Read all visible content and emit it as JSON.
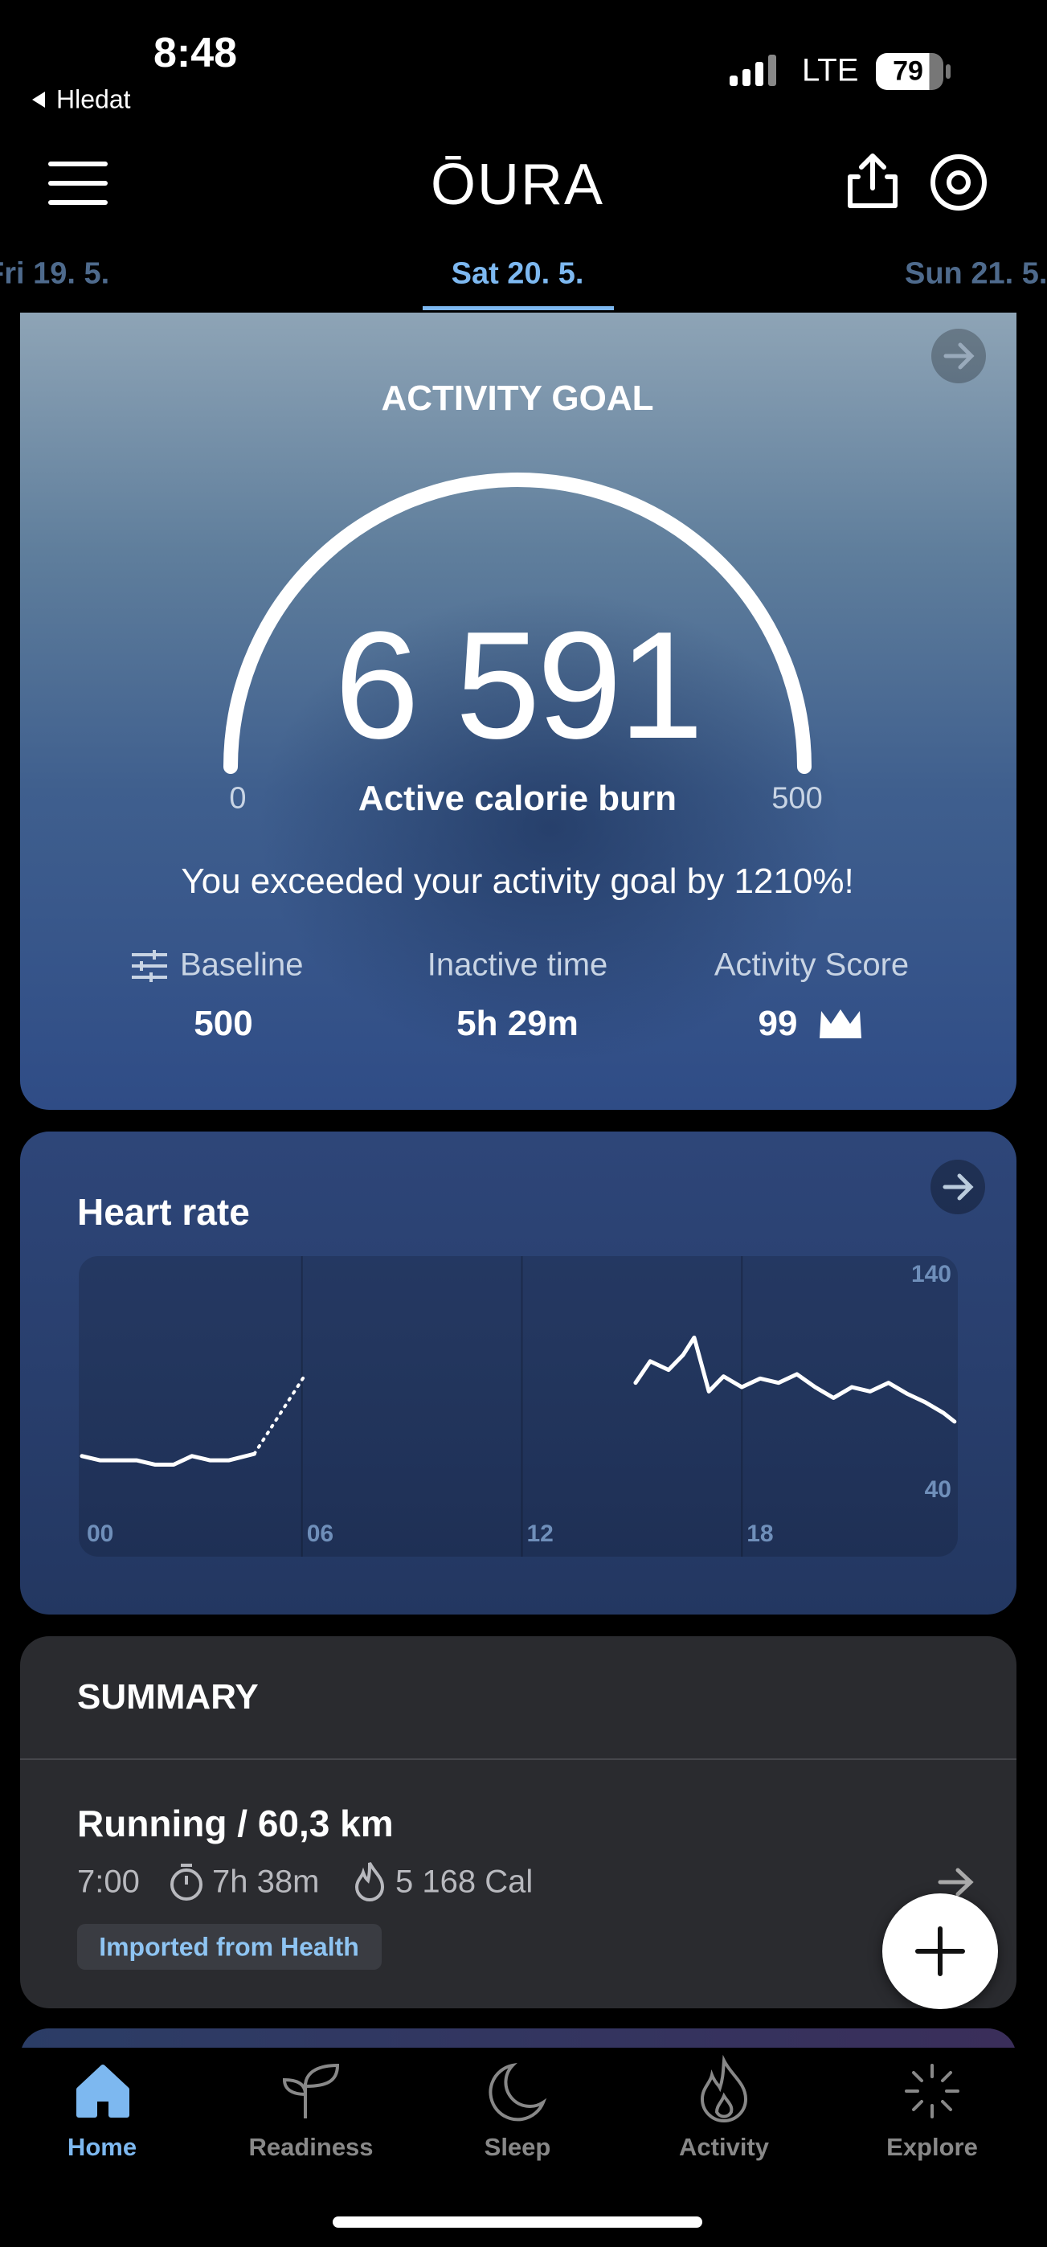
{
  "status_bar": {
    "time": "8:48",
    "back": "Hledat",
    "network": "LTE",
    "battery": 79
  },
  "header": {
    "logo": "ŌURA"
  },
  "date_tabs": [
    "Fri 19. 5.",
    "Sat 20. 5.",
    "Sun 21. 5."
  ],
  "activity_card": {
    "title": "ACTIVITY GOAL",
    "value": "6 591",
    "gauge_min": "0",
    "gauge_max": "500",
    "label": "Active calorie burn",
    "message": "You exceeded your activity goal by 1210%!",
    "stats": [
      {
        "label": "Baseline",
        "value": "500"
      },
      {
        "label": "Inactive time",
        "value": "5h 29m"
      },
      {
        "label": "Activity Score",
        "value": "99"
      }
    ]
  },
  "heart_rate": {
    "title": "Heart rate",
    "chart_data": {
      "type": "line",
      "xlim": [
        0,
        24
      ],
      "ylim": [
        40,
        140
      ],
      "xticks": [
        {
          "value": 0,
          "label": "00"
        },
        {
          "value": 6,
          "label": "06"
        },
        {
          "value": 12,
          "label": "12"
        },
        {
          "value": 18,
          "label": "18"
        }
      ],
      "yticks": [
        140,
        40
      ],
      "series": [
        {
          "color": "#ffffff",
          "style": "solid",
          "x": [
            0,
            0.5,
            1,
            1.5,
            2,
            2.5,
            3,
            3.5,
            4,
            4.7
          ],
          "values": [
            55,
            53,
            53,
            53,
            51,
            51,
            55,
            53,
            53,
            56
          ]
        },
        {
          "color": "#ffffff",
          "style": "dotted",
          "x": [
            4.7,
            6.1
          ],
          "values": [
            56,
            93
          ]
        },
        {
          "color": "#ffffff",
          "style": "solid",
          "x": [
            15.1,
            15.5,
            16,
            16.4,
            16.7,
            17.1,
            17.5,
            18,
            18.5,
            19,
            19.5,
            20,
            20.5,
            21,
            21.5,
            22,
            22.5,
            23,
            23.5,
            23.8
          ],
          "values": [
            89,
            99,
            95,
            102,
            110,
            85,
            92,
            87,
            91,
            89,
            93,
            87,
            82,
            87,
            85,
            89,
            84,
            80,
            75,
            71
          ]
        }
      ]
    }
  },
  "summary": {
    "title": "SUMMARY",
    "activity": "Running / 60,3 km",
    "start": "7:00",
    "duration": "7h 38m",
    "calories": "5 168 Cal",
    "source": "Imported from Health"
  },
  "tab_bar": [
    "Home",
    "Readiness",
    "Sleep",
    "Activity",
    "Explore"
  ]
}
